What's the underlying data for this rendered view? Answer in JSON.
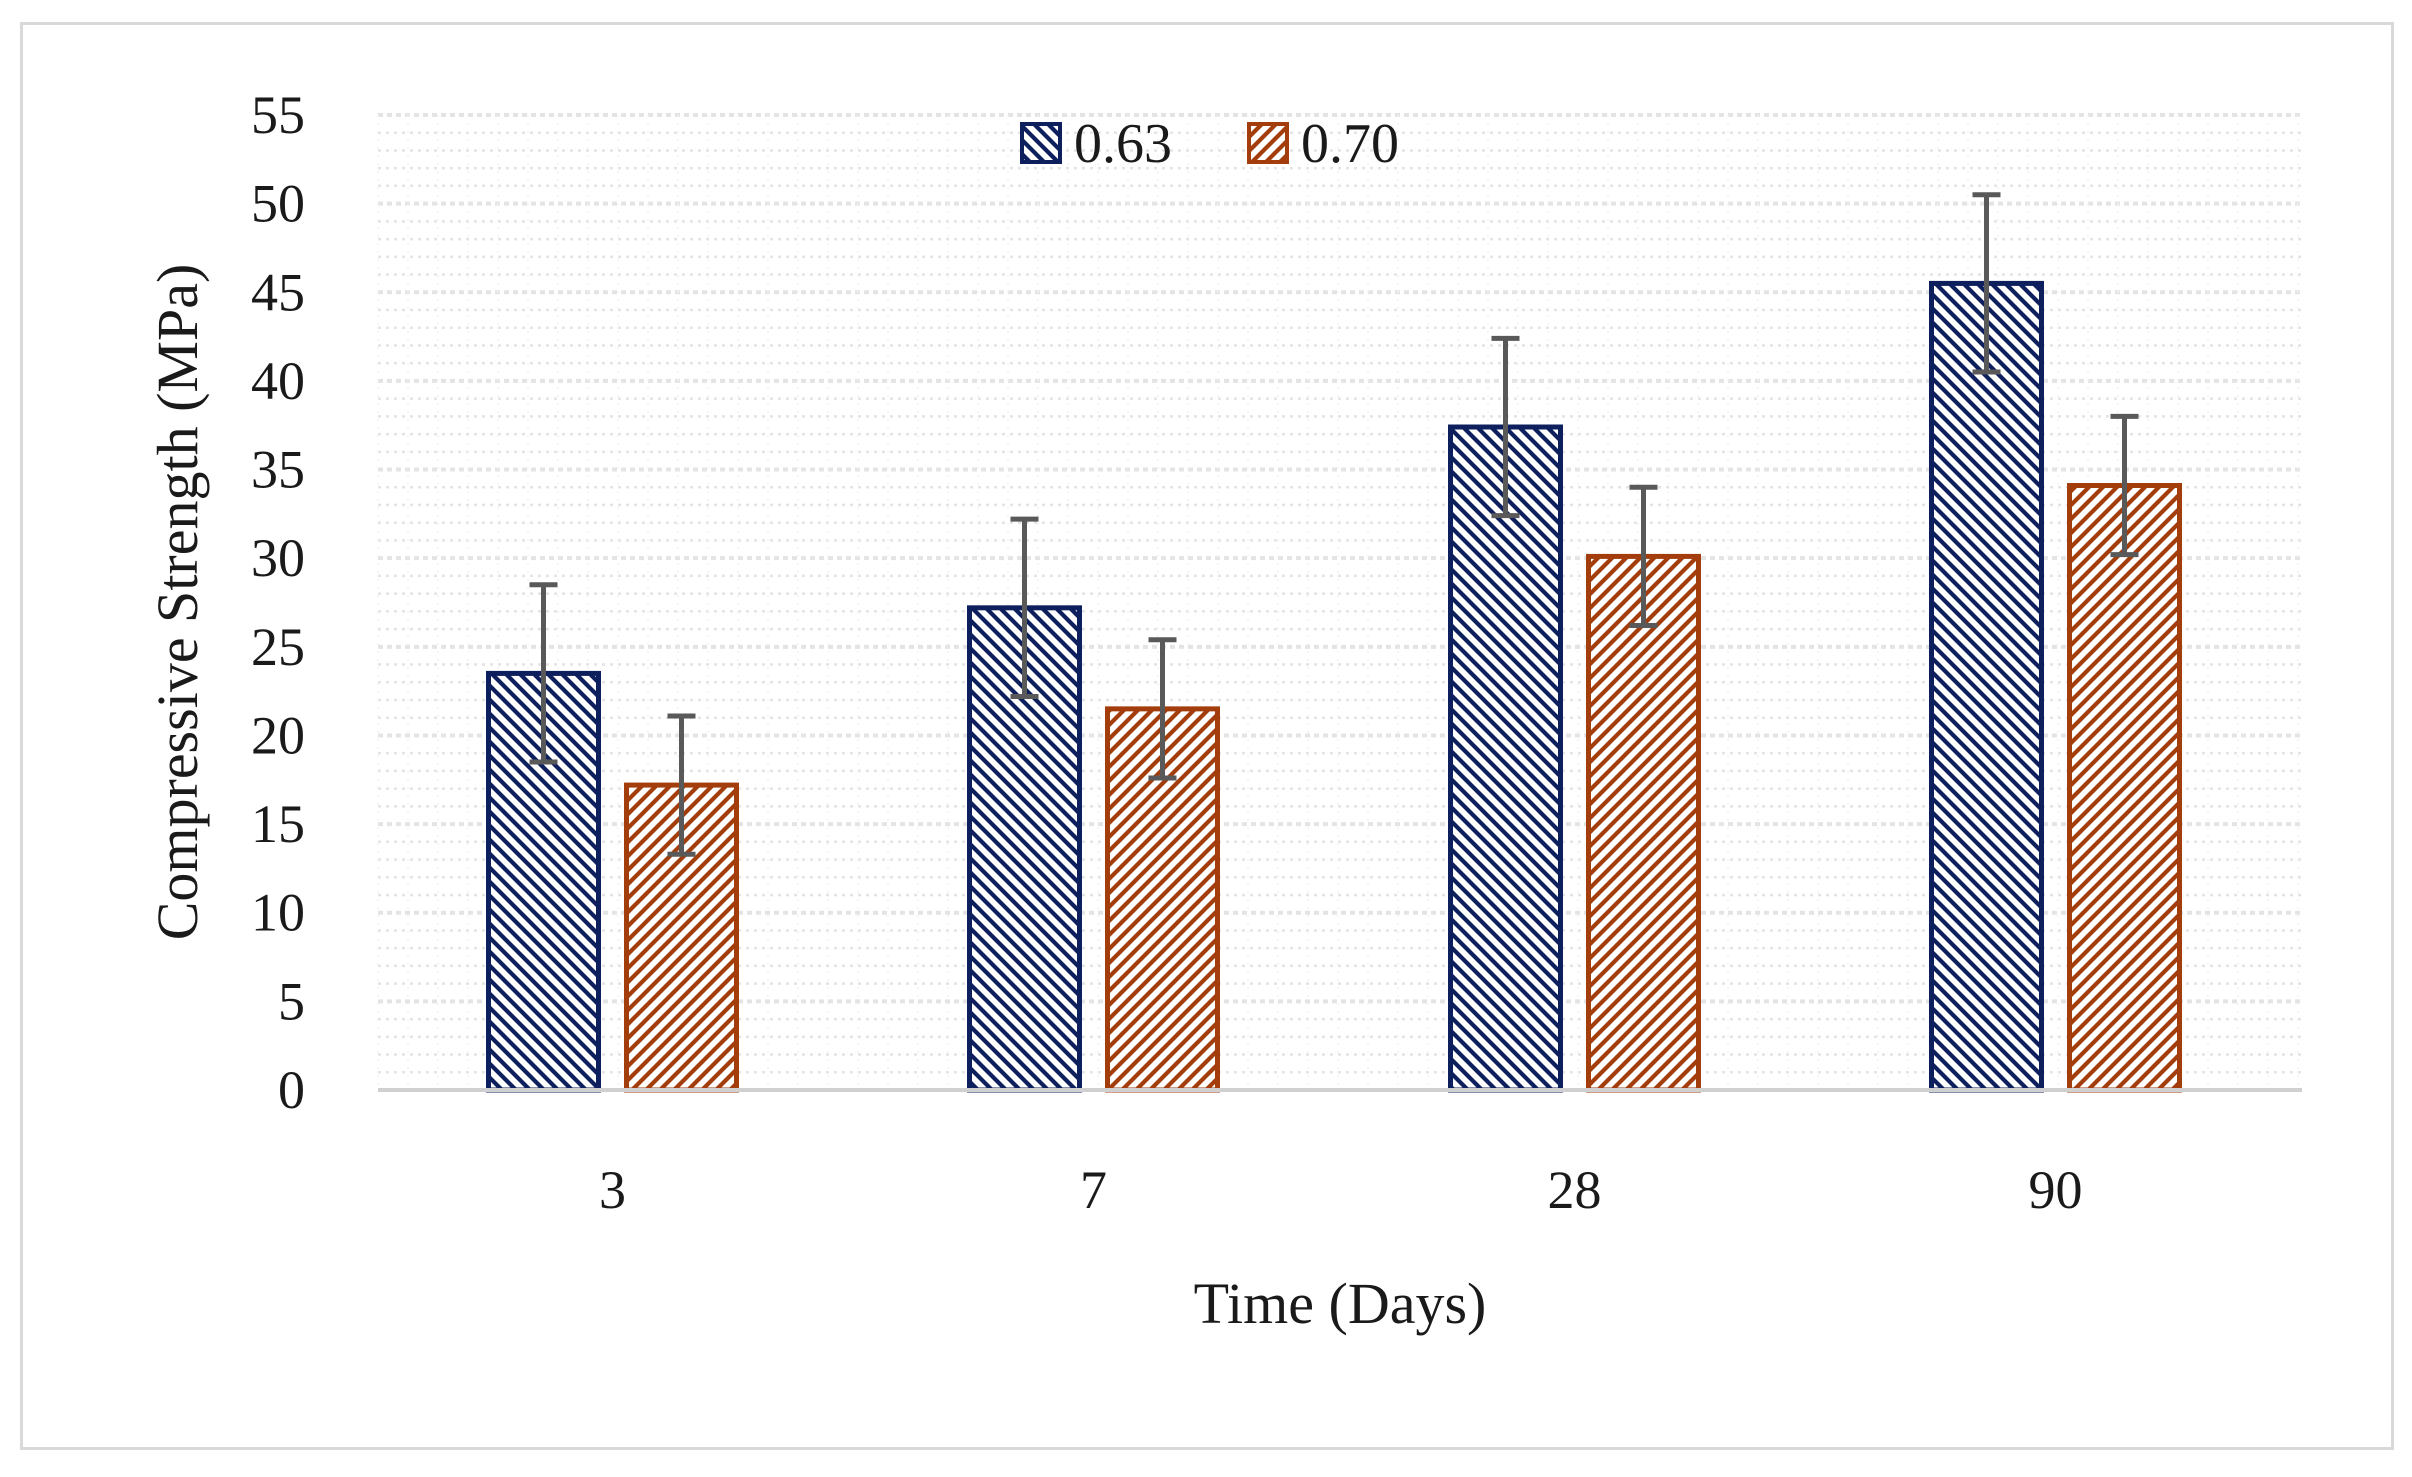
{
  "chart_data": {
    "type": "bar",
    "title": "",
    "xlabel": "Time (Days)",
    "ylabel": "Compressive Strength (MPa)",
    "categories": [
      "3",
      "7",
      "28",
      "90"
    ],
    "ylim": [
      0,
      55
    ],
    "ytick_step": 5,
    "grid": true,
    "legend_position": "top-center",
    "series": [
      {
        "name": "0.63",
        "values": [
          23.5,
          27.2,
          37.4,
          45.5
        ],
        "errors": [
          5.0,
          5.0,
          5.0,
          5.0
        ],
        "color": "#0d1f5c",
        "pattern": "diagonal-down"
      },
      {
        "name": "0.70",
        "values": [
          17.2,
          21.5,
          30.1,
          34.1
        ],
        "errors": [
          3.9,
          3.9,
          3.9,
          3.9
        ],
        "color": "#a33d0b",
        "pattern": "diagonal-up"
      }
    ],
    "error_bar_color": "#595959",
    "axis_color": "#d0d0d0",
    "grid_color": "#e4e4e4"
  }
}
